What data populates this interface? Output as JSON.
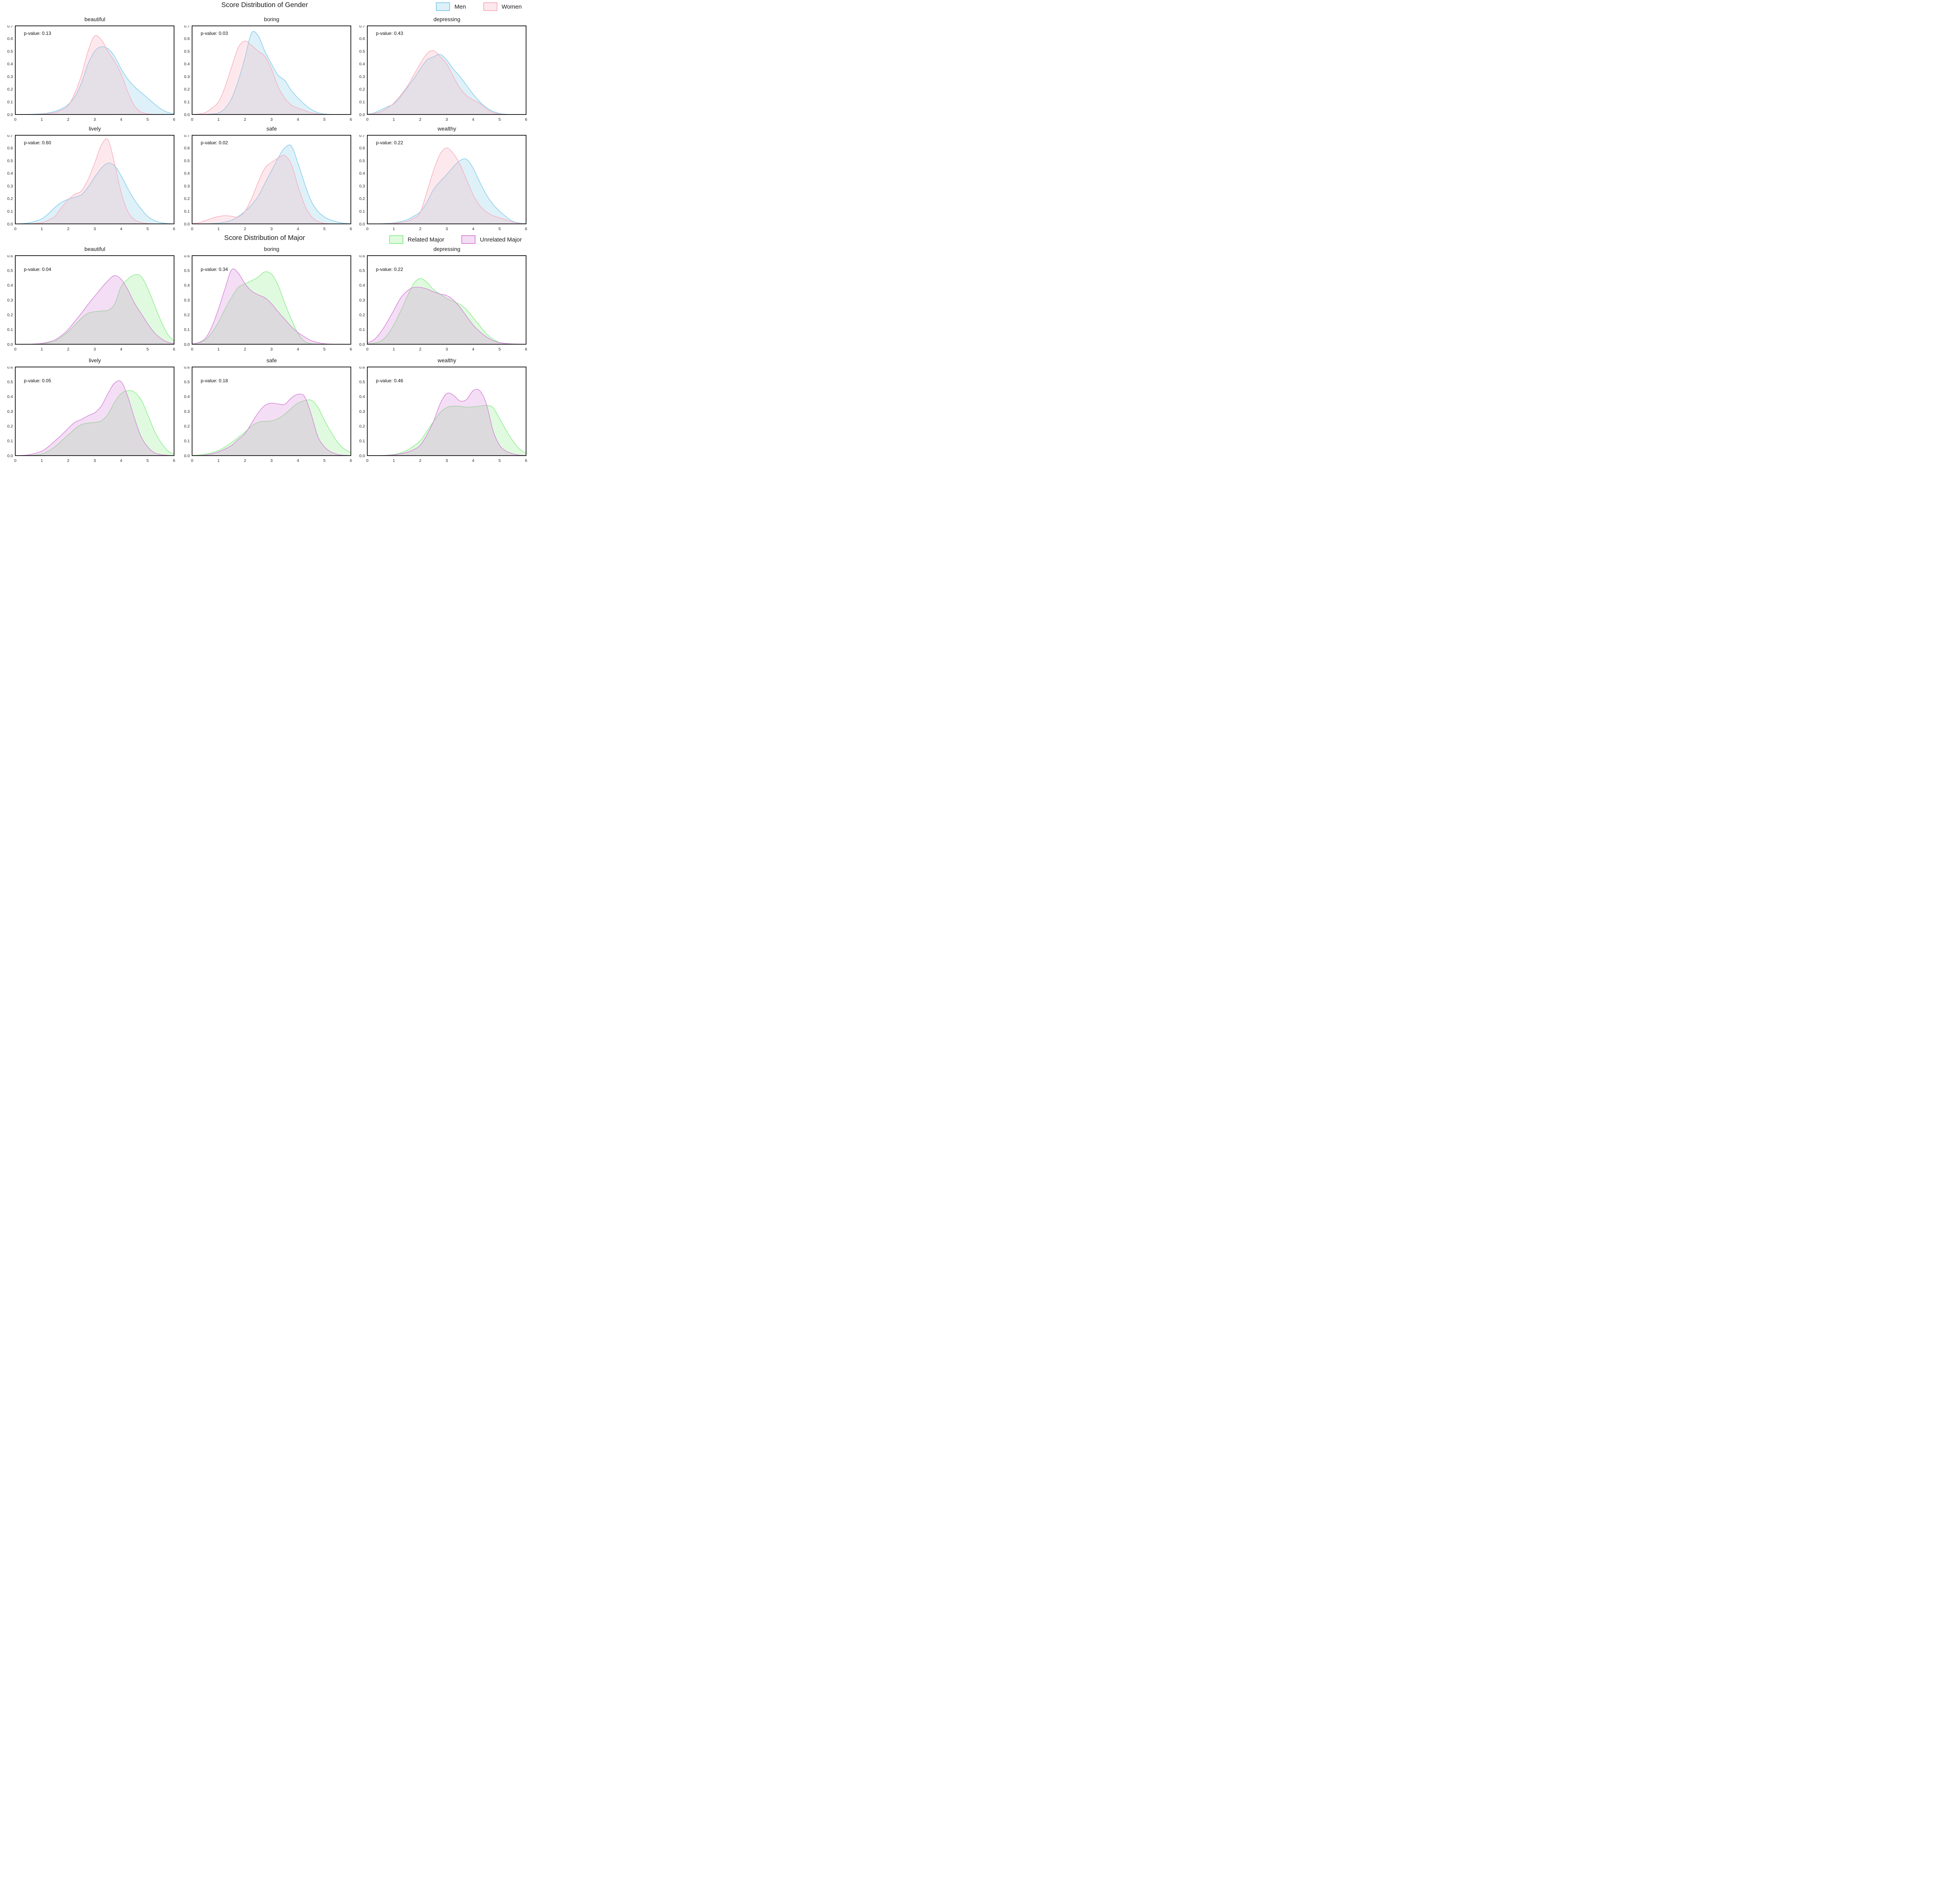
{
  "figure_background": "#ffffff",
  "chart_data": [
    {
      "type": "area",
      "title": "Score Distribution of Gender",
      "legend_position": "top-right",
      "x_range": [
        0,
        6
      ],
      "y_range": [
        0,
        0.7
      ],
      "x_ticks": [
        0,
        1,
        2,
        3,
        4,
        5,
        6
      ],
      "y_tick_step": 0.1,
      "x_step": 0.25,
      "grid": false,
      "legend": [
        {
          "name": "Men",
          "stroke": "#87CEEB",
          "fill_opacity": 0.28
        },
        {
          "name": "Women",
          "stroke": "#F8B1C0",
          "fill_opacity": 0.28
        }
      ],
      "subplots": [
        {
          "title": "beautiful",
          "p_label": "p-value: 0.13",
          "series": [
            {
              "name": "Men",
              "values": [
                0,
                0,
                0.001,
                0.003,
                0.006,
                0.012,
                0.025,
                0.045,
                0.08,
                0.14,
                0.25,
                0.4,
                0.5,
                0.535,
                0.52,
                0.46,
                0.36,
                0.28,
                0.22,
                0.175,
                0.13,
                0.085,
                0.045,
                0.018,
                0.005
              ]
            },
            {
              "name": "Women",
              "values": [
                0,
                0,
                0,
                0.001,
                0.003,
                0.008,
                0.015,
                0.035,
                0.07,
                0.17,
                0.31,
                0.5,
                0.62,
                0.59,
                0.5,
                0.42,
                0.32,
                0.18,
                0.07,
                0.02,
                0.005,
                0.001,
                0,
                0,
                0
              ]
            }
          ]
        },
        {
          "title": "boring",
          "p_label": "p-value: 0.03",
          "series": [
            {
              "name": "Men",
              "values": [
                0,
                0,
                0.001,
                0.004,
                0.012,
                0.05,
                0.13,
                0.27,
                0.45,
                0.645,
                0.62,
                0.5,
                0.4,
                0.31,
                0.27,
                0.19,
                0.13,
                0.08,
                0.04,
                0.015,
                0.004,
                0.001,
                0,
                0,
                0
              ]
            },
            {
              "name": "Women",
              "values": [
                0.001,
                0.004,
                0.015,
                0.05,
                0.1,
                0.22,
                0.38,
                0.53,
                0.58,
                0.545,
                0.5,
                0.46,
                0.36,
                0.22,
                0.13,
                0.075,
                0.05,
                0.032,
                0.014,
                0.005,
                0.001,
                0,
                0,
                0,
                0
              ]
            }
          ]
        },
        {
          "title": "depressing",
          "p_label": "p-value: 0.43",
          "series": [
            {
              "name": "Men",
              "values": [
                0.004,
                0.012,
                0.035,
                0.06,
                0.085,
                0.14,
                0.21,
                0.28,
                0.36,
                0.43,
                0.455,
                0.475,
                0.43,
                0.36,
                0.3,
                0.23,
                0.16,
                0.1,
                0.055,
                0.025,
                0.008,
                0.002,
                0,
                0,
                0
              ]
            },
            {
              "name": "Women",
              "values": [
                0.002,
                0.008,
                0.02,
                0.05,
                0.09,
                0.15,
                0.22,
                0.31,
                0.4,
                0.48,
                0.505,
                0.46,
                0.4,
                0.3,
                0.21,
                0.15,
                0.115,
                0.088,
                0.045,
                0.015,
                0.004,
                0.001,
                0,
                0,
                0
              ]
            }
          ]
        },
        {
          "title": "lively",
          "p_label": "p-value: 0.60",
          "series": [
            {
              "name": "Men",
              "values": [
                0,
                0.002,
                0.008,
                0.02,
                0.04,
                0.08,
                0.13,
                0.17,
                0.195,
                0.21,
                0.23,
                0.29,
                0.37,
                0.44,
                0.48,
                0.46,
                0.38,
                0.28,
                0.19,
                0.12,
                0.06,
                0.027,
                0.01,
                0.003,
                0
              ]
            },
            {
              "name": "Women",
              "values": [
                0,
                0,
                0.001,
                0.004,
                0.01,
                0.03,
                0.06,
                0.13,
                0.19,
                0.235,
                0.26,
                0.35,
                0.48,
                0.62,
                0.665,
                0.48,
                0.25,
                0.1,
                0.035,
                0.012,
                0.003,
                0.001,
                0,
                0,
                0
              ]
            }
          ]
        },
        {
          "title": "safe",
          "p_label": "p-value: 0.02",
          "series": [
            {
              "name": "Men",
              "values": [
                0,
                0,
                0.001,
                0.003,
                0.006,
                0.015,
                0.03,
                0.06,
                0.1,
                0.15,
                0.22,
                0.32,
                0.42,
                0.52,
                0.6,
                0.615,
                0.48,
                0.32,
                0.18,
                0.1,
                0.055,
                0.03,
                0.015,
                0.005,
                0.001
              ]
            },
            {
              "name": "Women",
              "values": [
                0.002,
                0.01,
                0.025,
                0.045,
                0.058,
                0.065,
                0.06,
                0.055,
                0.1,
                0.2,
                0.33,
                0.44,
                0.485,
                0.52,
                0.54,
                0.47,
                0.3,
                0.15,
                0.06,
                0.02,
                0.005,
                0.001,
                0,
                0,
                0
              ]
            }
          ]
        },
        {
          "title": "wealthy",
          "p_label": "p-value: 0.22",
          "series": [
            {
              "name": "Men",
              "values": [
                0,
                0,
                0.001,
                0.004,
                0.008,
                0.018,
                0.032,
                0.06,
                0.095,
                0.17,
                0.27,
                0.335,
                0.39,
                0.45,
                0.5,
                0.51,
                0.44,
                0.33,
                0.23,
                0.155,
                0.1,
                0.055,
                0.02,
                0.007,
                0.002
              ]
            },
            {
              "name": "Women",
              "values": [
                0,
                0,
                0,
                0.002,
                0.005,
                0.01,
                0.02,
                0.045,
                0.09,
                0.25,
                0.42,
                0.55,
                0.6,
                0.555,
                0.47,
                0.35,
                0.23,
                0.145,
                0.095,
                0.065,
                0.048,
                0.032,
                0.014,
                0.004,
                0.001
              ]
            }
          ]
        }
      ]
    },
    {
      "type": "area",
      "title": "Score Distribution of Major",
      "legend_position": "top-right",
      "x_range": [
        0,
        6
      ],
      "y_range": [
        0,
        0.6
      ],
      "x_ticks": [
        0,
        1,
        2,
        3,
        4,
        5,
        6
      ],
      "y_tick_step": 0.1,
      "x_step": 0.25,
      "grid": false,
      "legend": [
        {
          "name": "Related Major",
          "stroke": "#90EE90",
          "fill_opacity": 0.28
        },
        {
          "name": "Unrelated Major",
          "stroke": "#D78ADA",
          "fill_opacity": 0.28
        }
      ],
      "subplots": [
        {
          "title": "beautiful",
          "p_label": "p-value: 0.04",
          "series": [
            {
              "name": "Related Major",
              "values": [
                0,
                0,
                0,
                0.001,
                0.003,
                0.01,
                0.022,
                0.05,
                0.085,
                0.13,
                0.175,
                0.21,
                0.22,
                0.225,
                0.23,
                0.27,
                0.39,
                0.44,
                0.47,
                0.46,
                0.38,
                0.27,
                0.16,
                0.07,
                0.02
              ]
            },
            {
              "name": "Unrelated Major",
              "values": [
                0,
                0,
                0,
                0.002,
                0.006,
                0.015,
                0.03,
                0.06,
                0.1,
                0.155,
                0.21,
                0.27,
                0.325,
                0.38,
                0.43,
                0.465,
                0.44,
                0.37,
                0.28,
                0.21,
                0.14,
                0.08,
                0.04,
                0.015,
                0.004
              ]
            }
          ]
        },
        {
          "title": "boring",
          "p_label": "p-value: 0.34",
          "series": [
            {
              "name": "Related Major",
              "values": [
                0.002,
                0.01,
                0.03,
                0.08,
                0.15,
                0.24,
                0.32,
                0.385,
                0.41,
                0.43,
                0.455,
                0.49,
                0.475,
                0.4,
                0.28,
                0.17,
                0.075,
                0.02,
                0.004,
                0.001,
                0,
                0,
                0,
                0,
                0
              ]
            },
            {
              "name": "Unrelated Major",
              "values": [
                0.002,
                0.012,
                0.04,
                0.12,
                0.24,
                0.38,
                0.505,
                0.48,
                0.41,
                0.36,
                0.335,
                0.315,
                0.275,
                0.22,
                0.17,
                0.12,
                0.08,
                0.05,
                0.025,
                0.012,
                0.004,
                0.001,
                0,
                0,
                0
              ]
            }
          ]
        },
        {
          "title": "depressing",
          "p_label": "p-value: 0.22",
          "series": [
            {
              "name": "Related Major",
              "values": [
                0.002,
                0.008,
                0.02,
                0.06,
                0.13,
                0.22,
                0.32,
                0.41,
                0.445,
                0.42,
                0.37,
                0.34,
                0.31,
                0.29,
                0.27,
                0.235,
                0.18,
                0.125,
                0.07,
                0.035,
                0.012,
                0.004,
                0.001,
                0,
                0
              ]
            },
            {
              "name": "Unrelated Major",
              "values": [
                0.01,
                0.03,
                0.08,
                0.15,
                0.23,
                0.31,
                0.36,
                0.385,
                0.385,
                0.375,
                0.355,
                0.34,
                0.33,
                0.3,
                0.25,
                0.19,
                0.13,
                0.085,
                0.05,
                0.025,
                0.012,
                0.005,
                0.002,
                0.001,
                0
              ]
            }
          ]
        },
        {
          "title": "lively",
          "p_label": "p-value: 0.05",
          "series": [
            {
              "name": "Related Major",
              "values": [
                0,
                0,
                0.001,
                0.004,
                0.01,
                0.03,
                0.06,
                0.1,
                0.14,
                0.18,
                0.21,
                0.22,
                0.225,
                0.235,
                0.28,
                0.36,
                0.42,
                0.44,
                0.43,
                0.38,
                0.28,
                0.17,
                0.09,
                0.035,
                0.01
              ]
            },
            {
              "name": "Unrelated Major",
              "values": [
                0,
                0.001,
                0.005,
                0.015,
                0.03,
                0.06,
                0.1,
                0.14,
                0.185,
                0.225,
                0.245,
                0.27,
                0.29,
                0.335,
                0.42,
                0.49,
                0.5,
                0.4,
                0.255,
                0.13,
                0.06,
                0.02,
                0.007,
                0.002,
                0
              ]
            }
          ]
        },
        {
          "title": "safe",
          "p_label": "p-value: 0.18",
          "series": [
            {
              "name": "Related Major",
              "values": [
                0.001,
                0.004,
                0.01,
                0.02,
                0.035,
                0.06,
                0.09,
                0.125,
                0.16,
                0.2,
                0.225,
                0.232,
                0.235,
                0.25,
                0.28,
                0.32,
                0.355,
                0.372,
                0.375,
                0.33,
                0.24,
                0.16,
                0.09,
                0.045,
                0.02
              ]
            },
            {
              "name": "Unrelated Major",
              "values": [
                0,
                0.001,
                0.004,
                0.012,
                0.025,
                0.045,
                0.07,
                0.11,
                0.15,
                0.22,
                0.29,
                0.34,
                0.355,
                0.35,
                0.347,
                0.39,
                0.415,
                0.4,
                0.28,
                0.13,
                0.06,
                0.025,
                0.008,
                0.002,
                0
              ]
            }
          ]
        },
        {
          "title": "wealthy",
          "p_label": "p-value: 0.46",
          "series": [
            {
              "name": "Related Major",
              "values": [
                0,
                0,
                0.001,
                0.003,
                0.008,
                0.018,
                0.035,
                0.065,
                0.1,
                0.165,
                0.23,
                0.29,
                0.325,
                0.335,
                0.333,
                0.328,
                0.33,
                0.335,
                0.34,
                0.325,
                0.25,
                0.17,
                0.1,
                0.045,
                0.015
              ]
            },
            {
              "name": "Unrelated Major",
              "values": [
                0,
                0,
                0,
                0.002,
                0.005,
                0.012,
                0.022,
                0.04,
                0.07,
                0.14,
                0.23,
                0.35,
                0.42,
                0.41,
                0.37,
                0.38,
                0.44,
                0.44,
                0.35,
                0.17,
                0.07,
                0.03,
                0.012,
                0.004,
                0.001
              ]
            }
          ]
        }
      ]
    }
  ]
}
